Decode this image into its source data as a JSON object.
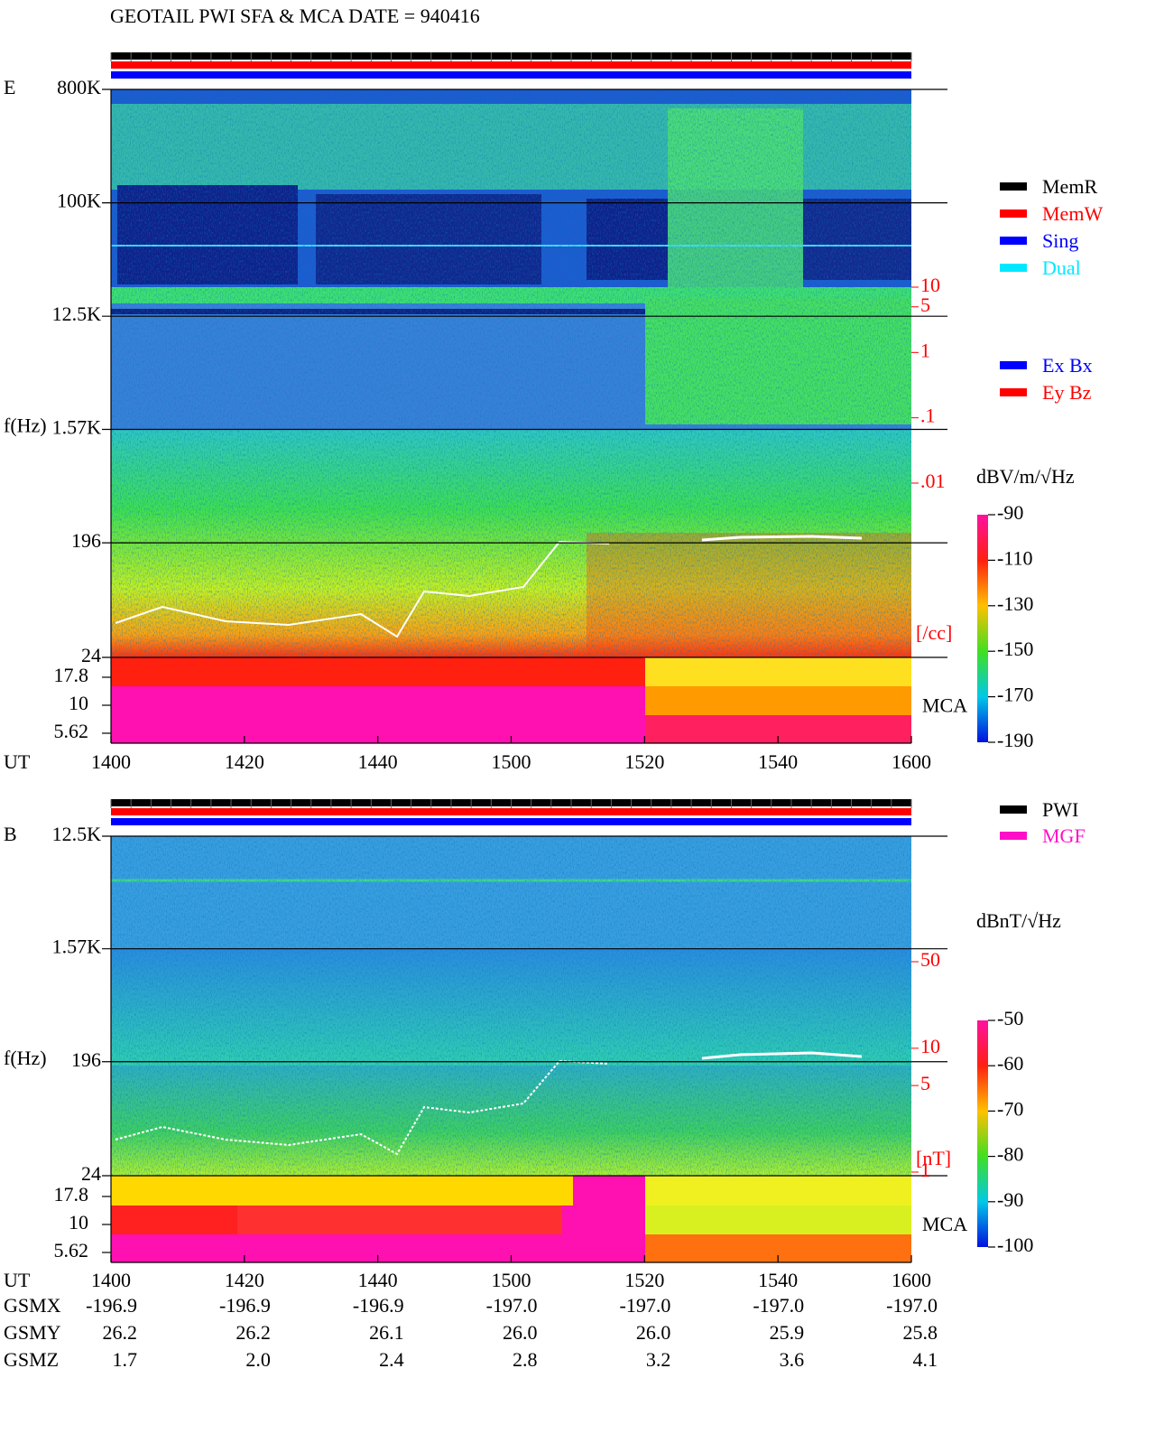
{
  "title": "GEOTAIL  PWI SFA & MCA   DATE = 940416",
  "chart_data": [
    {
      "type": "spectrogram",
      "panel": "E",
      "ylabel": "f(Hz)",
      "xlabel": "UT",
      "x": [
        "1400",
        "1420",
        "1440",
        "1500",
        "1520",
        "1540",
        "1600"
      ],
      "log_y": true,
      "ylim": [
        24,
        800000
      ],
      "yticks": [
        {
          "value": 800000,
          "label": "800K"
        },
        {
          "value": 100000,
          "label": "100K"
        },
        {
          "value": 12500,
          "label": "12.5K"
        },
        {
          "value": 1570,
          "label": "1.57K"
        },
        196,
        24
      ],
      "mca_label": "MCA",
      "mca_ticks": [
        17.8,
        10,
        5.62
      ],
      "y2lim": [
        0.01,
        10
      ],
      "y2ticks": [
        10,
        5,
        1,
        {
          "value": 0.1,
          "label": ".1"
        },
        {
          "value": 0.01,
          "label": ".01"
        }
      ],
      "y2label": "[/cc]",
      "colorbar": {
        "label": "dBV/m/√Hz",
        "lim": [
          -190,
          -90
        ],
        "ticks": [
          -90,
          -110,
          -130,
          -150,
          -170,
          -190
        ]
      },
      "legend": [
        {
          "name": "MemR",
          "color": "#000000"
        },
        {
          "name": "MemW",
          "color": "#ff0000"
        },
        {
          "name": "Sing",
          "color": "#0000ff"
        },
        {
          "name": "Dual",
          "color": "#00e8ff"
        }
      ],
      "legend2": [
        {
          "name": "Ex Bx",
          "color": "#0000ff"
        },
        {
          "name": "Ey Bz",
          "color": "#ff0000"
        }
      ]
    },
    {
      "type": "spectrogram",
      "panel": "B",
      "ylabel": "f(Hz)",
      "xlabel": "UT",
      "x": [
        "1400",
        "1420",
        "1440",
        "1500",
        "1520",
        "1540",
        "1600"
      ],
      "log_y": true,
      "ylim": [
        24,
        12500
      ],
      "yticks": [
        {
          "value": 12500,
          "label": "12.5K"
        },
        {
          "value": 1570,
          "label": "1.57K"
        },
        196,
        24
      ],
      "mca_label": "MCA",
      "mca_ticks": [
        17.8,
        10,
        5.62
      ],
      "y2lim": [
        1,
        50
      ],
      "y2ticks": [
        50,
        10,
        5,
        1
      ],
      "y2label": "[nT]",
      "colorbar": {
        "label": "dBnT/√Hz",
        "lim": [
          -100,
          -50
        ],
        "ticks": [
          -50,
          -60,
          -70,
          -80,
          -90,
          -100
        ]
      },
      "legend": [
        {
          "name": "PWI",
          "color": "#000000"
        },
        {
          "name": "MGF",
          "color": "#ff10c8"
        }
      ]
    }
  ],
  "orbit": [
    {
      "label": "GSMX",
      "values": [
        "-196.9",
        "-196.9",
        "-196.9",
        "-197.0",
        "-197.0",
        "-197.0",
        "-197.0"
      ]
    },
    {
      "label": "GSMY",
      "values": [
        "26.2",
        "26.2",
        "26.1",
        "26.0",
        "26.0",
        "25.9",
        "25.8"
      ]
    },
    {
      "label": "GSMZ",
      "values": [
        "1.7",
        "2.0",
        "2.4",
        "2.8",
        "3.2",
        "3.6",
        "4.1"
      ]
    }
  ]
}
